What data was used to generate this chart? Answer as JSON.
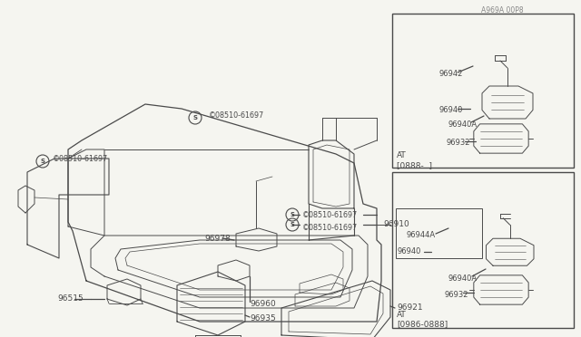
{
  "bg_color": "#f5f5f0",
  "line_color": "#4a4a4a",
  "fig_width": 6.4,
  "fig_height": 3.72,
  "dpi": 100,
  "watermark": "A969A 00P8",
  "inset1_label": "[0986-0888]",
  "inset1_sub": "AT",
  "inset2_label": "[0888-  ]",
  "inset2_sub": "AT"
}
